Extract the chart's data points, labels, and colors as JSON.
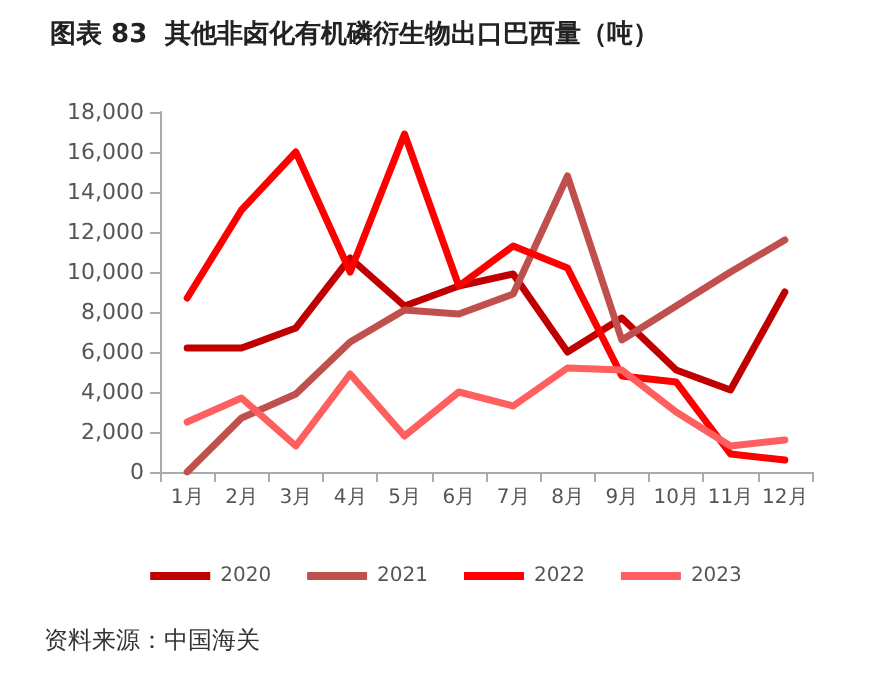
{
  "chart_data": {
    "type": "line",
    "title": "图表 83  其他非卤化有机磷衍生物出口巴西量（吨）",
    "categories": [
      "1月",
      "2月",
      "3月",
      "4月",
      "5月",
      "6月",
      "7月",
      "8月",
      "9月",
      "10月",
      "11月",
      "12月"
    ],
    "series": [
      {
        "name": "2020",
        "color": "#c00000",
        "values": [
          6200,
          6200,
          7200,
          10700,
          8300,
          9300,
          9900,
          6000,
          7700,
          5100,
          4100,
          9000
        ]
      },
      {
        "name": "2021",
        "color": "#c0504d",
        "values": [
          0,
          2700,
          3900,
          6500,
          8100,
          7900,
          8900,
          14800,
          6600,
          8300,
          10000,
          11600
        ]
      },
      {
        "name": "2022",
        "color": "#ff0000",
        "values": [
          8700,
          13100,
          16000,
          10000,
          16900,
          9300,
          11300,
          10200,
          4800,
          4500,
          900,
          600
        ]
      },
      {
        "name": "2023",
        "color": "#ff5f5f",
        "values": [
          2500,
          3700,
          1300,
          4900,
          1800,
          4000,
          3300,
          5200,
          5100,
          3000,
          1300,
          1600
        ]
      }
    ],
    "ylim": [
      0,
      18000
    ],
    "yticks": [
      {
        "value": 0,
        "label": "0"
      },
      {
        "value": 2000,
        "label": "2,000"
      },
      {
        "value": 4000,
        "label": "4,000"
      },
      {
        "value": 6000,
        "label": "6,000"
      },
      {
        "value": 8000,
        "label": "8,000"
      },
      {
        "value": 10000,
        "label": "10,000"
      },
      {
        "value": 12000,
        "label": "12,000"
      },
      {
        "value": 14000,
        "label": "14,000"
      },
      {
        "value": 16000,
        "label": "16,000"
      },
      {
        "value": 18000,
        "label": "18,000"
      }
    ],
    "grid": false,
    "legend": "bottom",
    "marker": "none",
    "line_style": "solid",
    "annotations": [
      "资料来源：中国海关"
    ]
  }
}
